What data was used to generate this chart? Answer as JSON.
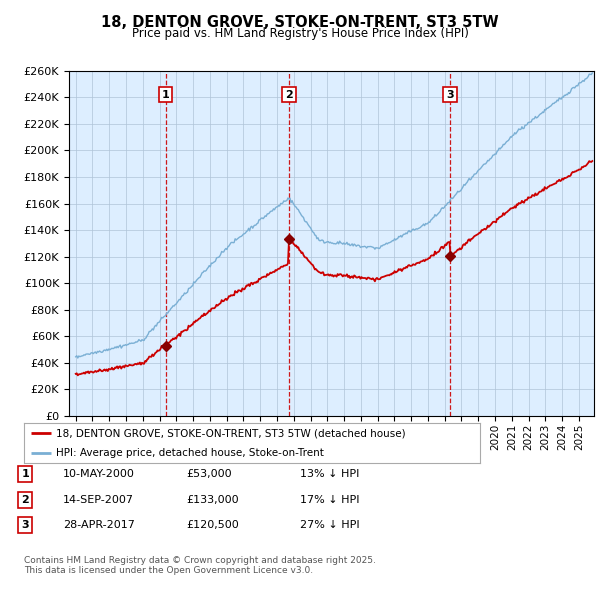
{
  "title": "18, DENTON GROVE, STOKE-ON-TRENT, ST3 5TW",
  "subtitle": "Price paid vs. HM Land Registry's House Price Index (HPI)",
  "sale_year_vals": [
    2000.36,
    2007.71,
    2017.32
  ],
  "sale_prices": [
    53000,
    133000,
    120500
  ],
  "sale_labels": [
    "1",
    "2",
    "3"
  ],
  "legend_line1": "18, DENTON GROVE, STOKE-ON-TRENT, ST3 5TW (detached house)",
  "legend_line2": "HPI: Average price, detached house, Stoke-on-Trent",
  "table_rows": [
    [
      "1",
      "10-MAY-2000",
      "£53,000",
      "13% ↓ HPI"
    ],
    [
      "2",
      "14-SEP-2007",
      "£133,000",
      "17% ↓ HPI"
    ],
    [
      "3",
      "28-APR-2017",
      "£120,500",
      "27% ↓ HPI"
    ]
  ],
  "footnote1": "Contains HM Land Registry data © Crown copyright and database right 2025.",
  "footnote2": "This data is licensed under the Open Government Licence v3.0.",
  "red_color": "#cc0000",
  "blue_color": "#7aafd4",
  "bg_color": "#ddeeff",
  "grid_color": "#b0c4d8",
  "ylim": [
    0,
    260000
  ],
  "ytick_step": 20000,
  "xlim_start": 1994.6,
  "xlim_end": 2025.9
}
